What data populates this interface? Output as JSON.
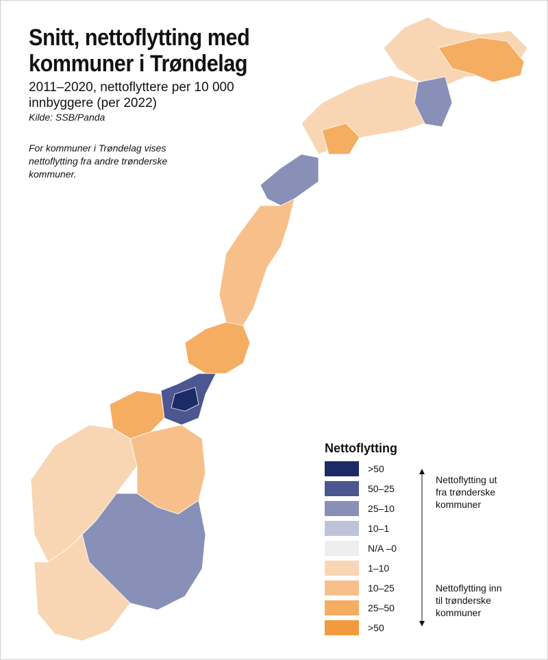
{
  "title_lines": [
    "Snitt, nettoflytting med",
    "kommuner i Trøndelag"
  ],
  "subtitle_lines": [
    "2011–2020, nettoflyttere per 10 000",
    "innbyggere (per 2022)"
  ],
  "source": "Kilde: SSB/Panda",
  "note_lines": [
    "For kommuner i Trøndelag vises",
    "nettoflytting fra andre trønderske",
    "kommuner."
  ],
  "legend": {
    "title": "Nettoflytting",
    "items": [
      {
        "label": ">50",
        "color": "#1c2a66"
      },
      {
        "label": "50–25",
        "color": "#4c5690"
      },
      {
        "label": "25–10",
        "color": "#8890b8"
      },
      {
        "label": "10–1",
        "color": "#bfc3da"
      },
      {
        "label": "N/A –0",
        "color": "#eeeeee"
      },
      {
        "label": "1–10",
        "color": "#f8d6b4"
      },
      {
        "label": "10–25",
        "color": "#f7c08a"
      },
      {
        "label": "25–50",
        "color": "#f5ad62"
      },
      {
        "label": ">50",
        "color": "#f39a3c"
      }
    ],
    "direction_out_lines": [
      "Nettoflytting ut",
      "fra trønderske",
      "kommuner"
    ],
    "direction_in_lines": [
      "Nettoflytting inn",
      "til trønderske",
      "kommuner"
    ]
  },
  "map_regions": [
    {
      "name": "far-north-coast",
      "class": "1–10"
    },
    {
      "name": "finnmark-east",
      "class": "25–50"
    },
    {
      "name": "finnmark-interior",
      "class": "25–10"
    },
    {
      "name": "troms",
      "class": "1–10"
    },
    {
      "name": "troms-center",
      "class": "25–50"
    },
    {
      "name": "lofoten-vesteralen",
      "class": "25–10"
    },
    {
      "name": "nordland",
      "class": "10–25"
    },
    {
      "name": "trondelag-north",
      "class": "25–50"
    },
    {
      "name": "trondelag-center",
      "class": "50–25"
    },
    {
      "name": "trondelag-core",
      "class": ">50"
    },
    {
      "name": "more-romsdal",
      "class": "25–50"
    },
    {
      "name": "vestland",
      "class": "1–10"
    },
    {
      "name": "innlandet",
      "class": "10–25"
    },
    {
      "name": "ostlandet",
      "class": "25–10"
    },
    {
      "name": "sorlandet",
      "class": "1–10"
    }
  ]
}
